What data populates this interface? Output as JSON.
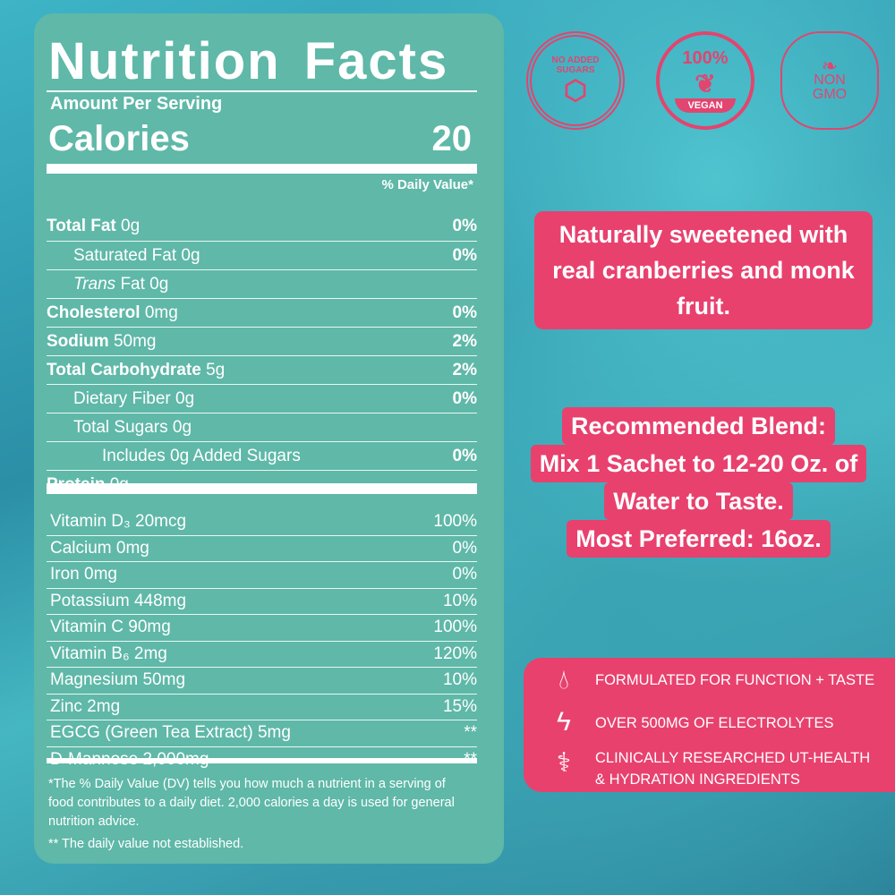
{
  "panel": {
    "title": "Nutrition Facts",
    "amount_per_serving": "Amount Per Serving",
    "calories_label": "Calories",
    "calories_value": "20",
    "dv_header": "% Daily Value*",
    "rows": [
      {
        "label": "Total Fat",
        "amount": "0g",
        "pct": "0%"
      },
      {
        "label": "Saturated Fat",
        "amount": "0g",
        "pct": "0%"
      },
      {
        "label": "Trans",
        "amount": "Fat 0g",
        "pct": ""
      },
      {
        "label": "Cholesterol",
        "amount": "0mg",
        "pct": "0%"
      },
      {
        "label": "Sodium",
        "amount": "50mg",
        "pct": "2%"
      },
      {
        "label": "Total Carbohydrate",
        "amount": "5g",
        "pct": "2%"
      },
      {
        "label": "Dietary Fiber",
        "amount": "0g",
        "pct": "0%"
      },
      {
        "label": "Total Sugars",
        "amount": "0g",
        "pct": ""
      },
      {
        "label": "Includes 0g Added Sugars",
        "amount": "",
        "pct": "0%"
      },
      {
        "label": "Protein",
        "amount": "0g",
        "pct": ""
      }
    ],
    "vitamins": [
      {
        "label": "Vitamin D₃ 20mcg",
        "pct": "100%"
      },
      {
        "label": "Calcium 0mg",
        "pct": "0%"
      },
      {
        "label": "Iron 0mg",
        "pct": "0%"
      },
      {
        "label": "Potassium 448mg",
        "pct": "10%"
      },
      {
        "label": "Vitamin C 90mg",
        "pct": "100%"
      },
      {
        "label": "Vitamin B₆ 2mg",
        "pct": "120%"
      },
      {
        "label": "Magnesium 50mg",
        "pct": "10%"
      },
      {
        "label": "Zinc 2mg",
        "pct": "15%"
      },
      {
        "label": "EGCG (Green Tea Extract) 5mg",
        "pct": "**"
      },
      {
        "label": "D-Mannose 2,000mg",
        "pct": "**"
      }
    ],
    "footnote1": "*The % Daily Value (DV) tells you how much a nutrient in a serving of food contributes to a daily diet. 2,000 calories a day is used for general nutrition advice.",
    "footnote2": "** The daily value not established."
  },
  "badges": {
    "no_sugar": "NO ADDED SUGARS",
    "vegan_pct": "100%",
    "vegan": "VEGAN",
    "non": "NON",
    "gmo": "GMO"
  },
  "callout1": "Naturally sweetened with real cranberries and monk fruit.",
  "blend": [
    "Recommended Blend:",
    "Mix 1 Sachet to 12-20 Oz. of",
    "Water to Taste.",
    "Most Preferred: 16oz."
  ],
  "features": [
    {
      "icon": "water-drop-icon",
      "text": "FORMULATED FOR FUNCTION + TASTE"
    },
    {
      "icon": "lightning-icon",
      "text": "OVER 500MG OF ELECTROLYTES"
    },
    {
      "icon": "caduceus-icon",
      "text": "CLINICALLY RESEARCHED UT-HEALTH & HYDRATION INGREDIENTS"
    }
  ],
  "colors": {
    "panel": "#5fb8a8",
    "pink": "#e8416e"
  }
}
